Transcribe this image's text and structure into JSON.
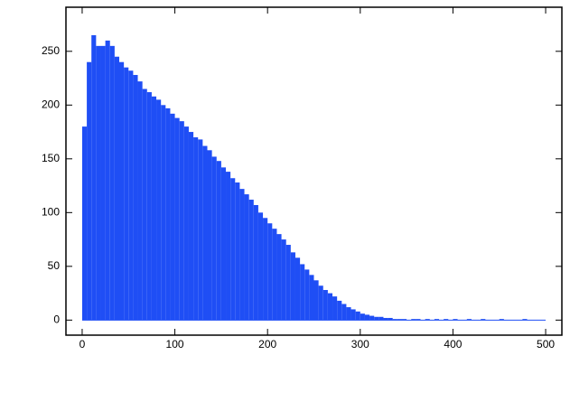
{
  "chart_data": {
    "type": "histogram",
    "color": "#1f4ef5",
    "bins": [
      0,
      5,
      10,
      15,
      20,
      25,
      30,
      35,
      40,
      45,
      50,
      55,
      60,
      65,
      70,
      75,
      80,
      85,
      90,
      95,
      100,
      105,
      110,
      115,
      120,
      125,
      130,
      135,
      140,
      145,
      150,
      155,
      160,
      165,
      170,
      175,
      180,
      185,
      190,
      195,
      200,
      205,
      210,
      215,
      220,
      225,
      230,
      235,
      240,
      245,
      250,
      255,
      260,
      265,
      270,
      275,
      280,
      285,
      290,
      295,
      300,
      305,
      310,
      315,
      320,
      325,
      330,
      335,
      340,
      345,
      350,
      355,
      360,
      365,
      370,
      375,
      380,
      385,
      390,
      395,
      400,
      405,
      410,
      415,
      420,
      425,
      430,
      435,
      440,
      445,
      450,
      455,
      460,
      465,
      470,
      475,
      480,
      485,
      490,
      495,
      500
    ],
    "values": [
      180,
      240,
      265,
      255,
      255,
      260,
      255,
      245,
      240,
      235,
      232,
      228,
      222,
      215,
      212,
      208,
      205,
      200,
      197,
      192,
      188,
      185,
      180,
      175,
      170,
      168,
      162,
      158,
      152,
      148,
      142,
      138,
      132,
      128,
      122,
      117,
      112,
      107,
      100,
      95,
      90,
      85,
      80,
      75,
      70,
      63,
      58,
      52,
      47,
      42,
      37,
      32,
      28,
      25,
      22,
      18,
      15,
      12,
      10,
      8,
      6,
      5,
      4,
      3,
      3,
      2,
      2,
      1,
      1,
      1,
      0,
      1,
      1,
      0,
      1,
      0,
      1,
      0,
      1,
      0,
      1,
      0,
      0,
      1,
      0,
      0,
      1,
      0,
      0,
      0,
      1,
      0,
      0,
      0,
      0,
      1,
      0,
      0,
      0,
      0
    ],
    "xlim": [
      -17.5,
      517.5
    ],
    "ylim": [
      -14,
      291
    ],
    "xticks": [
      0,
      100,
      200,
      300,
      400,
      500
    ],
    "yticks": [
      0,
      50,
      100,
      150,
      200,
      250
    ]
  }
}
